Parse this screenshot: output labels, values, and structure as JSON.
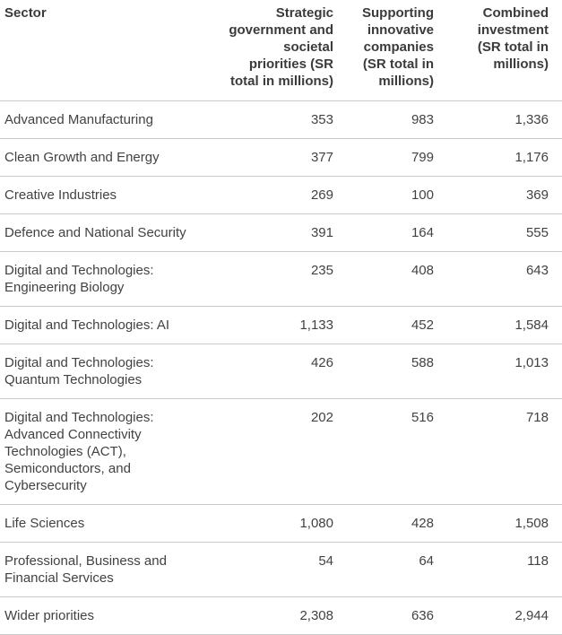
{
  "table": {
    "columns": [
      {
        "label": "Sector",
        "align": "left"
      },
      {
        "label": "Strategic government and societal priorities (SR total in millions)",
        "align": "right"
      },
      {
        "label": "Supporting innovative companies (SR total in millions)",
        "align": "right"
      },
      {
        "label": "Combined investment (SR total in millions)",
        "align": "right"
      }
    ],
    "rows": [
      {
        "sector": "Advanced Manufacturing",
        "values": [
          "353",
          "983",
          "1,336"
        ]
      },
      {
        "sector": "Clean Growth and Energy",
        "values": [
          "377",
          "799",
          "1,176"
        ]
      },
      {
        "sector": "Creative Industries",
        "values": [
          "269",
          "100",
          "369"
        ]
      },
      {
        "sector": "Defence and National Security",
        "values": [
          "391",
          "164",
          "555"
        ]
      },
      {
        "sector": "Digital and Technologies: Engineering Biology",
        "values": [
          "235",
          "408",
          "643"
        ]
      },
      {
        "sector": "Digital and Technologies: AI",
        "values": [
          "1,133",
          "452",
          "1,584"
        ]
      },
      {
        "sector": "Digital and Technologies: Quantum Technologies",
        "values": [
          "426",
          "588",
          "1,013"
        ]
      },
      {
        "sector": "Digital and Technologies: Advanced Connectivity Technologies (ACT), Semiconductors, and Cybersecurity",
        "values": [
          "202",
          "516",
          "718"
        ]
      },
      {
        "sector": "Life Sciences",
        "values": [
          "1,080",
          "428",
          "1,508"
        ]
      },
      {
        "sector": "Professional, Business and Financial Services",
        "values": [
          "54",
          "64",
          "118"
        ]
      },
      {
        "sector": "Wider priorities",
        "values": [
          "2,308",
          "636",
          "2,944"
        ]
      }
    ]
  },
  "colors": {
    "header_text": "#3b3b3b",
    "body_text": "#424242",
    "row_border": "#c9c9c9",
    "background": "#ffffff"
  },
  "chart_data": {
    "type": "table",
    "columns": [
      "Sector",
      "Strategic government and societal priorities (SR total in millions)",
      "Supporting innovative companies (SR total in millions)",
      "Combined investment (SR total in millions)"
    ],
    "rows": [
      [
        "Advanced Manufacturing",
        353,
        983,
        1336
      ],
      [
        "Clean Growth and Energy",
        377,
        799,
        1176
      ],
      [
        "Creative Industries",
        269,
        100,
        369
      ],
      [
        "Defence and National Security",
        391,
        164,
        555
      ],
      [
        "Digital and Technologies: Engineering Biology",
        235,
        408,
        643
      ],
      [
        "Digital and Technologies: AI",
        1133,
        452,
        1584
      ],
      [
        "Digital and Technologies: Quantum Technologies",
        426,
        588,
        1013
      ],
      [
        "Digital and Technologies: Advanced Connectivity Technologies (ACT), Semiconductors, and Cybersecurity",
        202,
        516,
        718
      ],
      [
        "Life Sciences",
        1080,
        428,
        1508
      ],
      [
        "Professional, Business and Financial Services",
        54,
        64,
        118
      ],
      [
        "Wider priorities",
        2308,
        636,
        2944
      ]
    ]
  }
}
